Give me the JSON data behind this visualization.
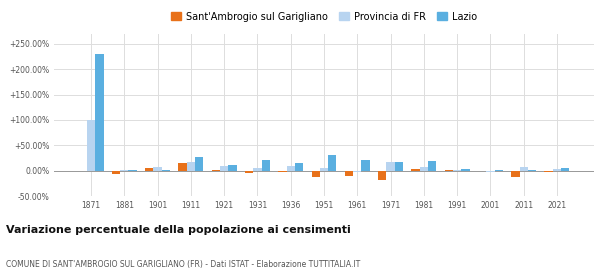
{
  "years": [
    1871,
    1881,
    1901,
    1911,
    1921,
    1931,
    1936,
    1951,
    1961,
    1971,
    1981,
    1991,
    2001,
    2011,
    2021
  ],
  "sant_ambrogio": [
    0.0,
    -7.0,
    5.0,
    15.0,
    0.5,
    -5.0,
    -2.0,
    -12.0,
    -10.0,
    -18.0,
    4.0,
    0.5,
    -1.0,
    -13.0,
    -3.0
  ],
  "provincia_fr": [
    100.0,
    0.5,
    7.0,
    17.0,
    10.0,
    5.0,
    10.0,
    5.0,
    -3.0,
    17.0,
    7.0,
    2.0,
    -2.0,
    8.0,
    3.0
  ],
  "lazio": [
    230.0,
    0.5,
    1.0,
    27.0,
    11.0,
    20.0,
    15.0,
    30.0,
    20.0,
    17.0,
    18.0,
    3.0,
    1.0,
    1.0,
    5.0
  ],
  "color_sant": "#e8711a",
  "color_prov": "#b8d4f0",
  "color_lazio": "#5aafe0",
  "title": "Variazione percentuale della popolazione ai censimenti",
  "subtitle": "COMUNE DI SANT'AMBROGIO SUL GARIGLIANO (FR) - Dati ISTAT - Elaborazione TUTTITALIA.IT",
  "legend_labels": [
    "Sant'Ambrogio sul Garigliano",
    "Provincia di FR",
    "Lazio"
  ],
  "ylim": [
    -50,
    270
  ],
  "yticks": [
    -50,
    0,
    50,
    100,
    150,
    200,
    250
  ],
  "ytick_labels": [
    "-50.00%",
    "0.00%",
    "+50.00%",
    "+100.00%",
    "+150.00%",
    "+200.00%",
    "+250.00%"
  ],
  "background_color": "#ffffff",
  "grid_color": "#dddddd"
}
